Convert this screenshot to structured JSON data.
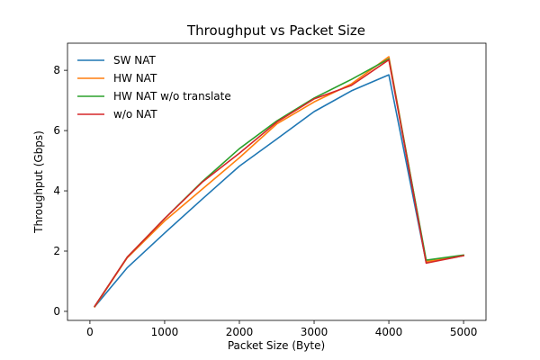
{
  "chart_data": {
    "type": "line",
    "title": "Throughput vs Packet Size",
    "xlabel": "Packet Size (Byte)",
    "ylabel": "Throughput (Gbps)",
    "xlim": [
      -300,
      5300
    ],
    "ylim": [
      -0.3,
      8.9
    ],
    "xticks": [
      0,
      1000,
      2000,
      3000,
      4000,
      5000
    ],
    "yticks": [
      0,
      2,
      4,
      6,
      8
    ],
    "grid": false,
    "legend_position": "upper-left",
    "x": [
      64,
      500,
      1000,
      1500,
      2000,
      2500,
      3000,
      3500,
      4000,
      4500,
      5000
    ],
    "series": [
      {
        "name": "SW NAT",
        "color": "#1f77b4",
        "values": [
          0.15,
          1.45,
          2.6,
          3.72,
          4.82,
          5.72,
          6.63,
          7.32,
          7.85,
          1.62,
          1.85
        ]
      },
      {
        "name": "HW NAT",
        "color": "#ff7f0e",
        "values": [
          0.15,
          1.78,
          3.0,
          4.05,
          5.1,
          6.22,
          6.95,
          7.55,
          8.45,
          1.65,
          1.85
        ]
      },
      {
        "name": "HW NAT w/o translate",
        "color": "#2ca02c",
        "values": [
          0.17,
          1.8,
          3.08,
          4.3,
          5.4,
          6.32,
          7.08,
          7.7,
          8.38,
          1.7,
          1.87
        ]
      },
      {
        "name": "w/o NAT",
        "color": "#d62728",
        "values": [
          0.17,
          1.8,
          3.08,
          4.28,
          5.25,
          6.28,
          7.05,
          7.5,
          8.35,
          1.6,
          1.85
        ]
      }
    ]
  }
}
